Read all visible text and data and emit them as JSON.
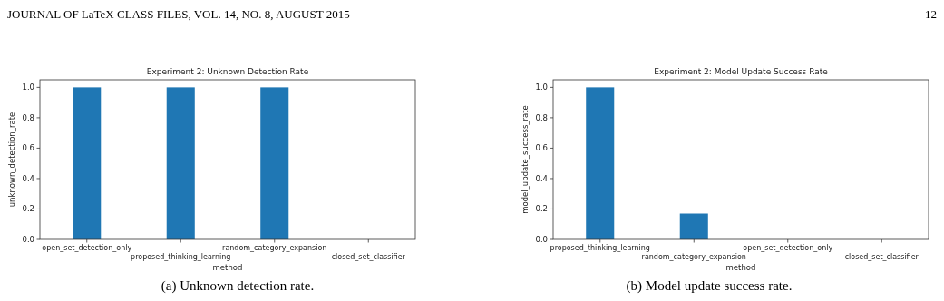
{
  "chart_data": [
    {
      "type": "bar",
      "title": "Experiment 2: Unknown Detection Rate",
      "xlabel": "method",
      "ylabel": "unknown_detection_rate",
      "categories": [
        "open_set_detection_only",
        "proposed_thinking_learning",
        "random_category_expansion",
        "closed_set_classifier"
      ],
      "values": [
        1.0,
        1.0,
        1.0,
        0
      ],
      "color": "#1f77b4",
      "ylim": [
        0,
        1.05
      ],
      "yticks": [
        {
          "value": 0,
          "label": "0.0"
        },
        {
          "value": 0.2,
          "label": "0.2"
        },
        {
          "value": 0.4,
          "label": "0.4"
        },
        {
          "value": 0.6,
          "label": "0.6"
        },
        {
          "value": 0.8,
          "label": "0.8"
        },
        {
          "value": 1,
          "label": "1.0"
        }
      ],
      "grid": false,
      "annotations": [
        "JOURNAL OF LaTeX CLASS FILES, VOL. 14, NO. 8, AUGUST 2015",
        "12",
        "(a) Unknown detection rate."
      ]
    },
    {
      "type": "bar",
      "title": "Experiment 2: Model Update Success Rate",
      "xlabel": "method",
      "ylabel": "model_update_success_rate",
      "categories": [
        "proposed_thinking_learning",
        "random_category_expansion",
        "open_set_detection_only",
        "closed_set_classifier"
      ],
      "values": [
        1.0,
        0.17,
        0,
        0
      ],
      "color": "#1f77b4",
      "ylim": [
        0,
        1.05
      ],
      "yticks": [
        {
          "value": 0,
          "label": "0.0"
        },
        {
          "value": 0.2,
          "label": "0.2"
        },
        {
          "value": 0.4,
          "label": "0.4"
        },
        {
          "value": 0.6,
          "label": "0.6"
        },
        {
          "value": 0.8,
          "label": "0.8"
        },
        {
          "value": 1,
          "label": "1.0"
        }
      ],
      "grid": false,
      "annotations": [
        "(b) Model update success rate."
      ]
    }
  ]
}
